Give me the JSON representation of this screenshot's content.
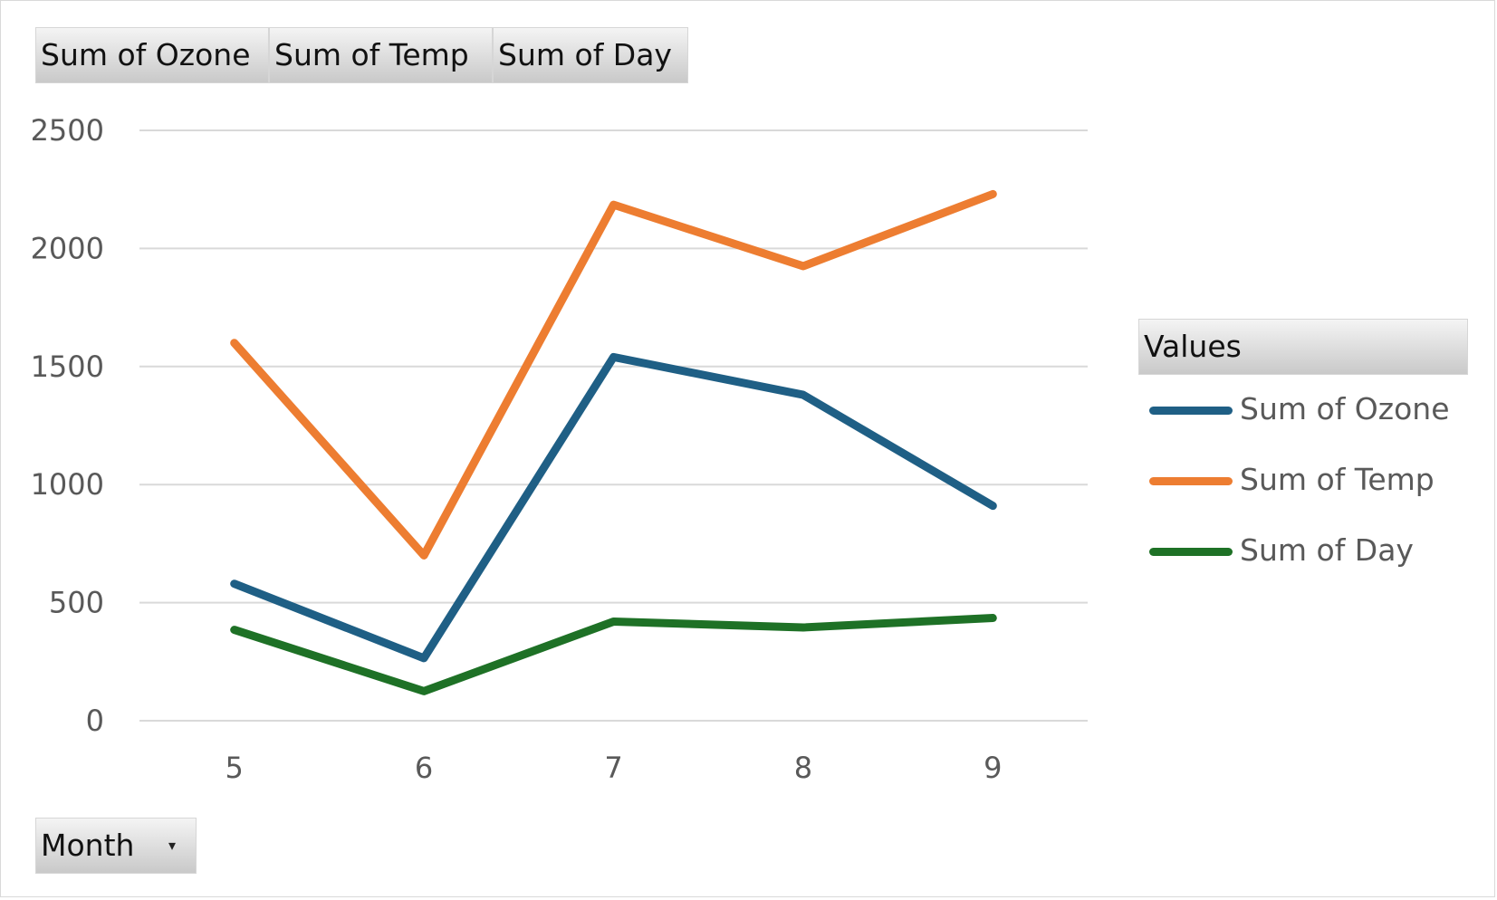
{
  "field_buttons": {
    "values": [
      "Sum of Ozone",
      "Sum of Temp",
      "Sum of Day"
    ],
    "axis": "Month"
  },
  "legend": {
    "title": "Values"
  },
  "colors": {
    "Sum of Ozone": "#1f5f85",
    "Sum of Temp": "#ed7d31",
    "Sum of Day": "#1e7126",
    "gridline": "#d9d9d9",
    "tick_text": "#595959"
  },
  "chart_data": {
    "type": "line",
    "categories": [
      "5",
      "6",
      "7",
      "8",
      "9"
    ],
    "series": [
      {
        "name": "Sum of Ozone",
        "values": [
          580,
          265,
          1540,
          1380,
          910
        ]
      },
      {
        "name": "Sum of Temp",
        "values": [
          1600,
          700,
          2185,
          1925,
          2230
        ]
      },
      {
        "name": "Sum of Day",
        "values": [
          385,
          125,
          420,
          395,
          435
        ]
      }
    ],
    "ylim": [
      0,
      2500
    ],
    "yticks": [
      0,
      500,
      1000,
      1500,
      2000,
      2500
    ],
    "grid": true,
    "legend_position": "right"
  }
}
